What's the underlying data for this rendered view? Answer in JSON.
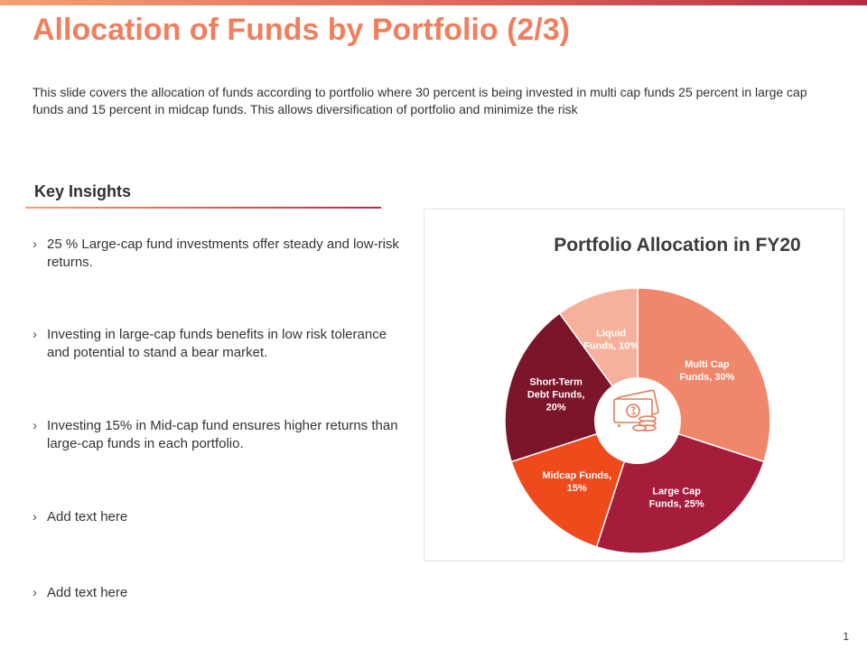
{
  "slide": {
    "title": "Allocation of Funds by Portfolio (2/3)",
    "description": "This slide covers the allocation of funds according to portfolio where 30 percent is being invested in multi cap funds 25 percent in large cap funds and 15 percent in midcap funds. This allows diversification of portfolio and minimize the risk",
    "page_number": "1"
  },
  "insights": {
    "title": "Key Insights",
    "bullet_glyph": "›",
    "items": [
      "25 % Large-cap fund investments  offer steady and low-risk returns.",
      "Investing  in large-cap funds benefits in low risk tolerance and potential to stand a bear market.",
      "Investing  15% in Mid-cap fund ensures higher returns than large-cap funds in each portfolio.",
      "Add text here",
      "Add text here"
    ]
  },
  "colors": {
    "accent": "#ef7f5e",
    "center_icon": "#e07a55"
  },
  "center_icon_name": "money-coins-icon",
  "chart_data": {
    "type": "pie",
    "title": "Portfolio Allocation in FY20",
    "start_angle_deg": 0,
    "direction": "clockwise",
    "slices": [
      {
        "label_lines": [
          "Multi Cap",
          "Funds,  30%"
        ],
        "value": 30,
        "color": "#f0876a"
      },
      {
        "label_lines": [
          "Large Cap",
          "Funds,  25%"
        ],
        "value": 25,
        "color": "#a61c3b"
      },
      {
        "label_lines": [
          "Midcap Funds,",
          "15%"
        ],
        "value": 15,
        "color": "#ef4a1c"
      },
      {
        "label_lines": [
          "Short-Term",
          "Debt Funds,",
          "20%"
        ],
        "value": 20,
        "color": "#7b1529"
      },
      {
        "label_lines": [
          "Liquid",
          "Funds,  10%"
        ],
        "value": 10,
        "color": "#f5b19b"
      }
    ]
  }
}
